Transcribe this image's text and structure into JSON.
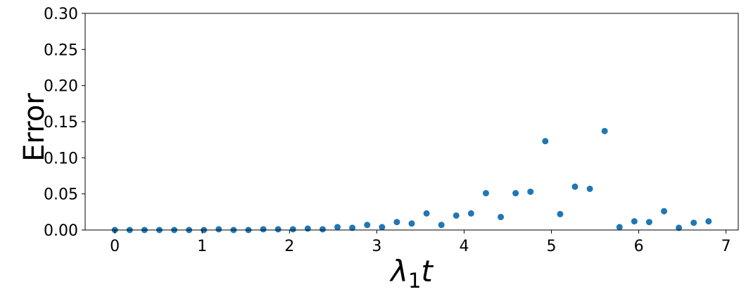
{
  "chart_data": {
    "type": "scatter",
    "title": "",
    "xlabel_main": "λ",
    "xlabel_sub": "1",
    "xlabel_var": "t",
    "ylabel": "Error",
    "xlim": [
      -0.34,
      7.14
    ],
    "ylim": [
      0,
      0.3
    ],
    "xticks": [
      0,
      1,
      2,
      3,
      4,
      5,
      6,
      7
    ],
    "xtick_labels": [
      "0",
      "1",
      "2",
      "3",
      "4",
      "5",
      "6",
      "7"
    ],
    "yticks": [
      0.0,
      0.05,
      0.1,
      0.15,
      0.2,
      0.25,
      0.3
    ],
    "ytick_labels": [
      "0.00",
      "0.05",
      "0.10",
      "0.15",
      "0.20",
      "0.25",
      "0.30"
    ],
    "grid": false,
    "marker_color": "#1f77b4",
    "series": [
      {
        "x": [
          0.0,
          0.17,
          0.34,
          0.51,
          0.68,
          0.85,
          1.02,
          1.19,
          1.36,
          1.53,
          1.7,
          1.87,
          2.04,
          2.21,
          2.38,
          2.55,
          2.72,
          2.89,
          3.06,
          3.23,
          3.4,
          3.57,
          3.74,
          3.91,
          4.08,
          4.25,
          4.42,
          4.59,
          4.76,
          4.93,
          5.1,
          5.27,
          5.44,
          5.61,
          5.78,
          5.95,
          6.12,
          6.29,
          6.46,
          6.63,
          6.8
        ],
        "y": [
          0.0,
          0.0,
          0.0,
          0.0,
          0.0,
          0.0,
          0.0,
          0.001,
          0.0,
          0.0,
          0.001,
          0.001,
          0.001,
          0.002,
          0.001,
          0.004,
          0.003,
          0.007,
          0.004,
          0.011,
          0.009,
          0.023,
          0.007,
          0.02,
          0.023,
          0.051,
          0.018,
          0.051,
          0.053,
          0.123,
          0.022,
          0.06,
          0.057,
          0.137,
          0.004,
          0.012,
          0.011,
          0.026,
          0.003,
          0.01,
          0.012
        ]
      }
    ]
  }
}
